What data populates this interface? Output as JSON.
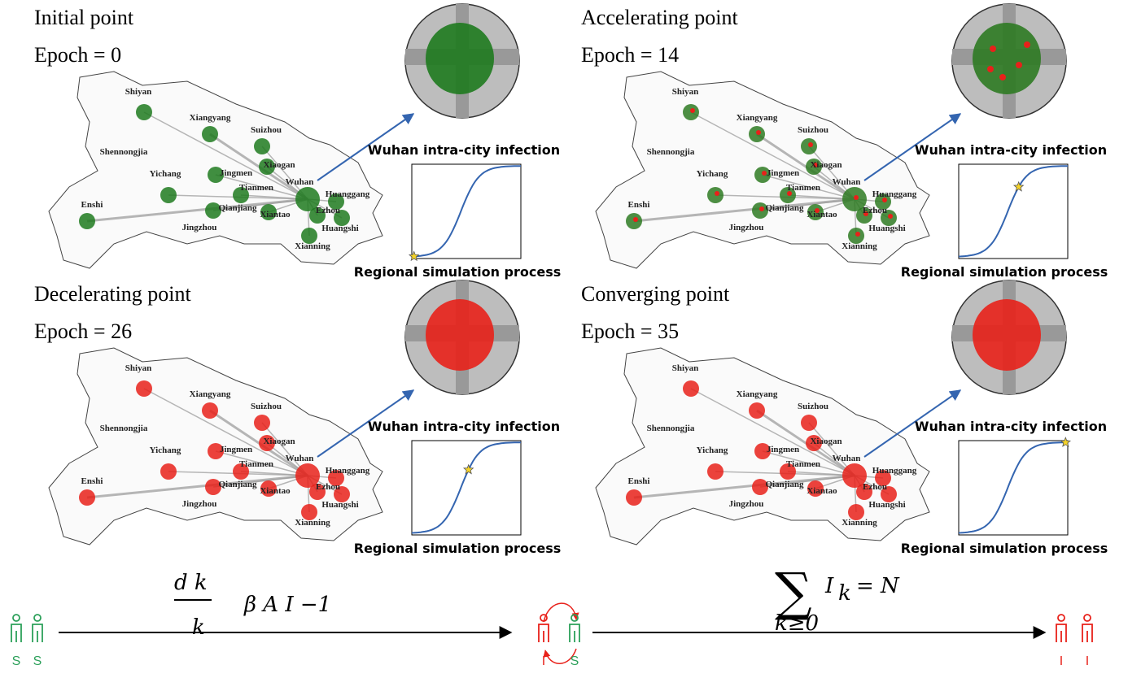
{
  "map": {
    "cities": [
      "Shiyan",
      "Xiangyang",
      "Suizhou",
      "Shennongjia",
      "Xiaogan",
      "Yichang",
      "Jingmen",
      "Wuhan",
      "Tianmen",
      "Huanggang",
      "Enshi",
      "Qianjiang",
      "Xiantao",
      "Ezhou",
      "Huangshi",
      "Jingzhou",
      "Xianning"
    ]
  },
  "panels": [
    {
      "title": "Initial point",
      "epoch": "Epoch = 0",
      "inset_caption": "Wuhan intra-city infection",
      "curve_caption": "Regional simulation process",
      "color": "#1e7a1e"
    },
    {
      "title": "Accelerating point",
      "epoch": "Epoch = 14",
      "inset_caption": "Wuhan intra-city infection",
      "curve_caption": "Regional simulation process",
      "color": "#2e7a22"
    },
    {
      "title": "Decelerating point",
      "epoch": "Epoch = 26",
      "inset_caption": "Wuhan intra-city infection",
      "curve_caption": "Regional simulation process",
      "color": "#e8211a"
    },
    {
      "title": "Converging point",
      "epoch": "Epoch = 35",
      "inset_caption": "Wuhan intra-city infection",
      "curve_caption": "Regional simulation process",
      "color": "#e8211a"
    }
  ],
  "equations": {
    "left": {
      "numerator": "d  k",
      "denominator": "k",
      "rhs": "β   A   I  −1"
    },
    "right": {
      "sum": "∑",
      "body": "I",
      "sub": "k",
      "rhs": "=  N",
      "limit": "k≥0"
    }
  },
  "states": {
    "start": [
      "S",
      "S"
    ],
    "middle": [
      "I",
      "S"
    ],
    "end": [
      "I",
      "I"
    ]
  }
}
